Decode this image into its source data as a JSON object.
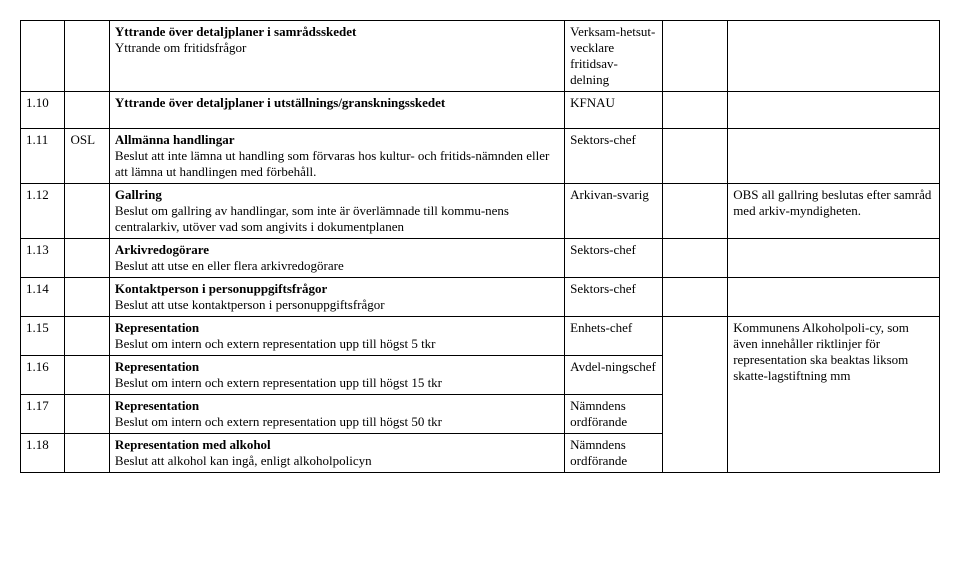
{
  "rows": [
    {
      "num": "",
      "code": "",
      "descTitle": "Yttrande över detaljplaner i samrådsskedet",
      "descBody": "Yttrande om fritidsfrågor",
      "resp": "Verksam-hetsut-vecklare fritidsav-delning",
      "note": ""
    },
    {
      "num": "1.10",
      "code": "",
      "descTitle": "Yttrande över detaljplaner i utställnings/granskningsskedet",
      "descBody": "",
      "resp": "KFNAU",
      "note": ""
    },
    {
      "num": "1.11",
      "code": "OSL",
      "descTitle": "Allmänna handlingar",
      "descBody": "Beslut att inte lämna ut handling som förvaras hos kultur- och fritids-nämnden eller att lämna ut handlingen med förbehåll.",
      "resp": "Sektors-chef",
      "note": ""
    },
    {
      "num": "1.12",
      "code": "",
      "descTitle": "Gallring",
      "descBody": "Beslut om gallring av handlingar, som inte är överlämnade till kommu-nens centralarkiv, utöver vad som angivits i dokumentplanen",
      "resp": "Arkivan-svarig",
      "note": "OBS all gallring beslutas efter samråd med arkiv-myndigheten."
    },
    {
      "num": "1.13",
      "code": "",
      "descTitle": "Arkivredogörare",
      "descBody": "Beslut att utse en eller flera arkivredogörare",
      "resp": "Sektors-chef",
      "note": ""
    },
    {
      "num": "1.14",
      "code": "",
      "descTitle": "Kontaktperson i personuppgiftsfrågor",
      "descBody": "Beslut att utse kontaktperson i personuppgiftsfrågor",
      "resp": "Sektors-chef",
      "note": ""
    }
  ],
  "group": {
    "r15": {
      "title": "Representation",
      "body": "Beslut om intern och extern representation upp till högst 5 tkr",
      "resp": "Enhets-chef"
    },
    "r16": {
      "title": "Representation",
      "body": "Beslut om intern och extern representation upp till högst 15 tkr",
      "resp": "Avdel-ningschef"
    },
    "r17": {
      "title": "Representation",
      "body": "Beslut om intern och extern representation upp till högst 50 tkr",
      "resp": "Nämndens ordförande"
    },
    "r18": {
      "title": "Representation med alkohol",
      "body": "Beslut att alkohol kan ingå, enligt alkoholpolicyn",
      "resp": "Nämndens ordförande"
    },
    "note": "Kommunens Alkoholpoli-cy, som även innehåller riktlinjer för representation ska beaktas liksom skatte-lagstiftning mm",
    "n15": "1.15",
    "n16": "1.16",
    "n17": "1.17",
    "n18": "1.18"
  }
}
